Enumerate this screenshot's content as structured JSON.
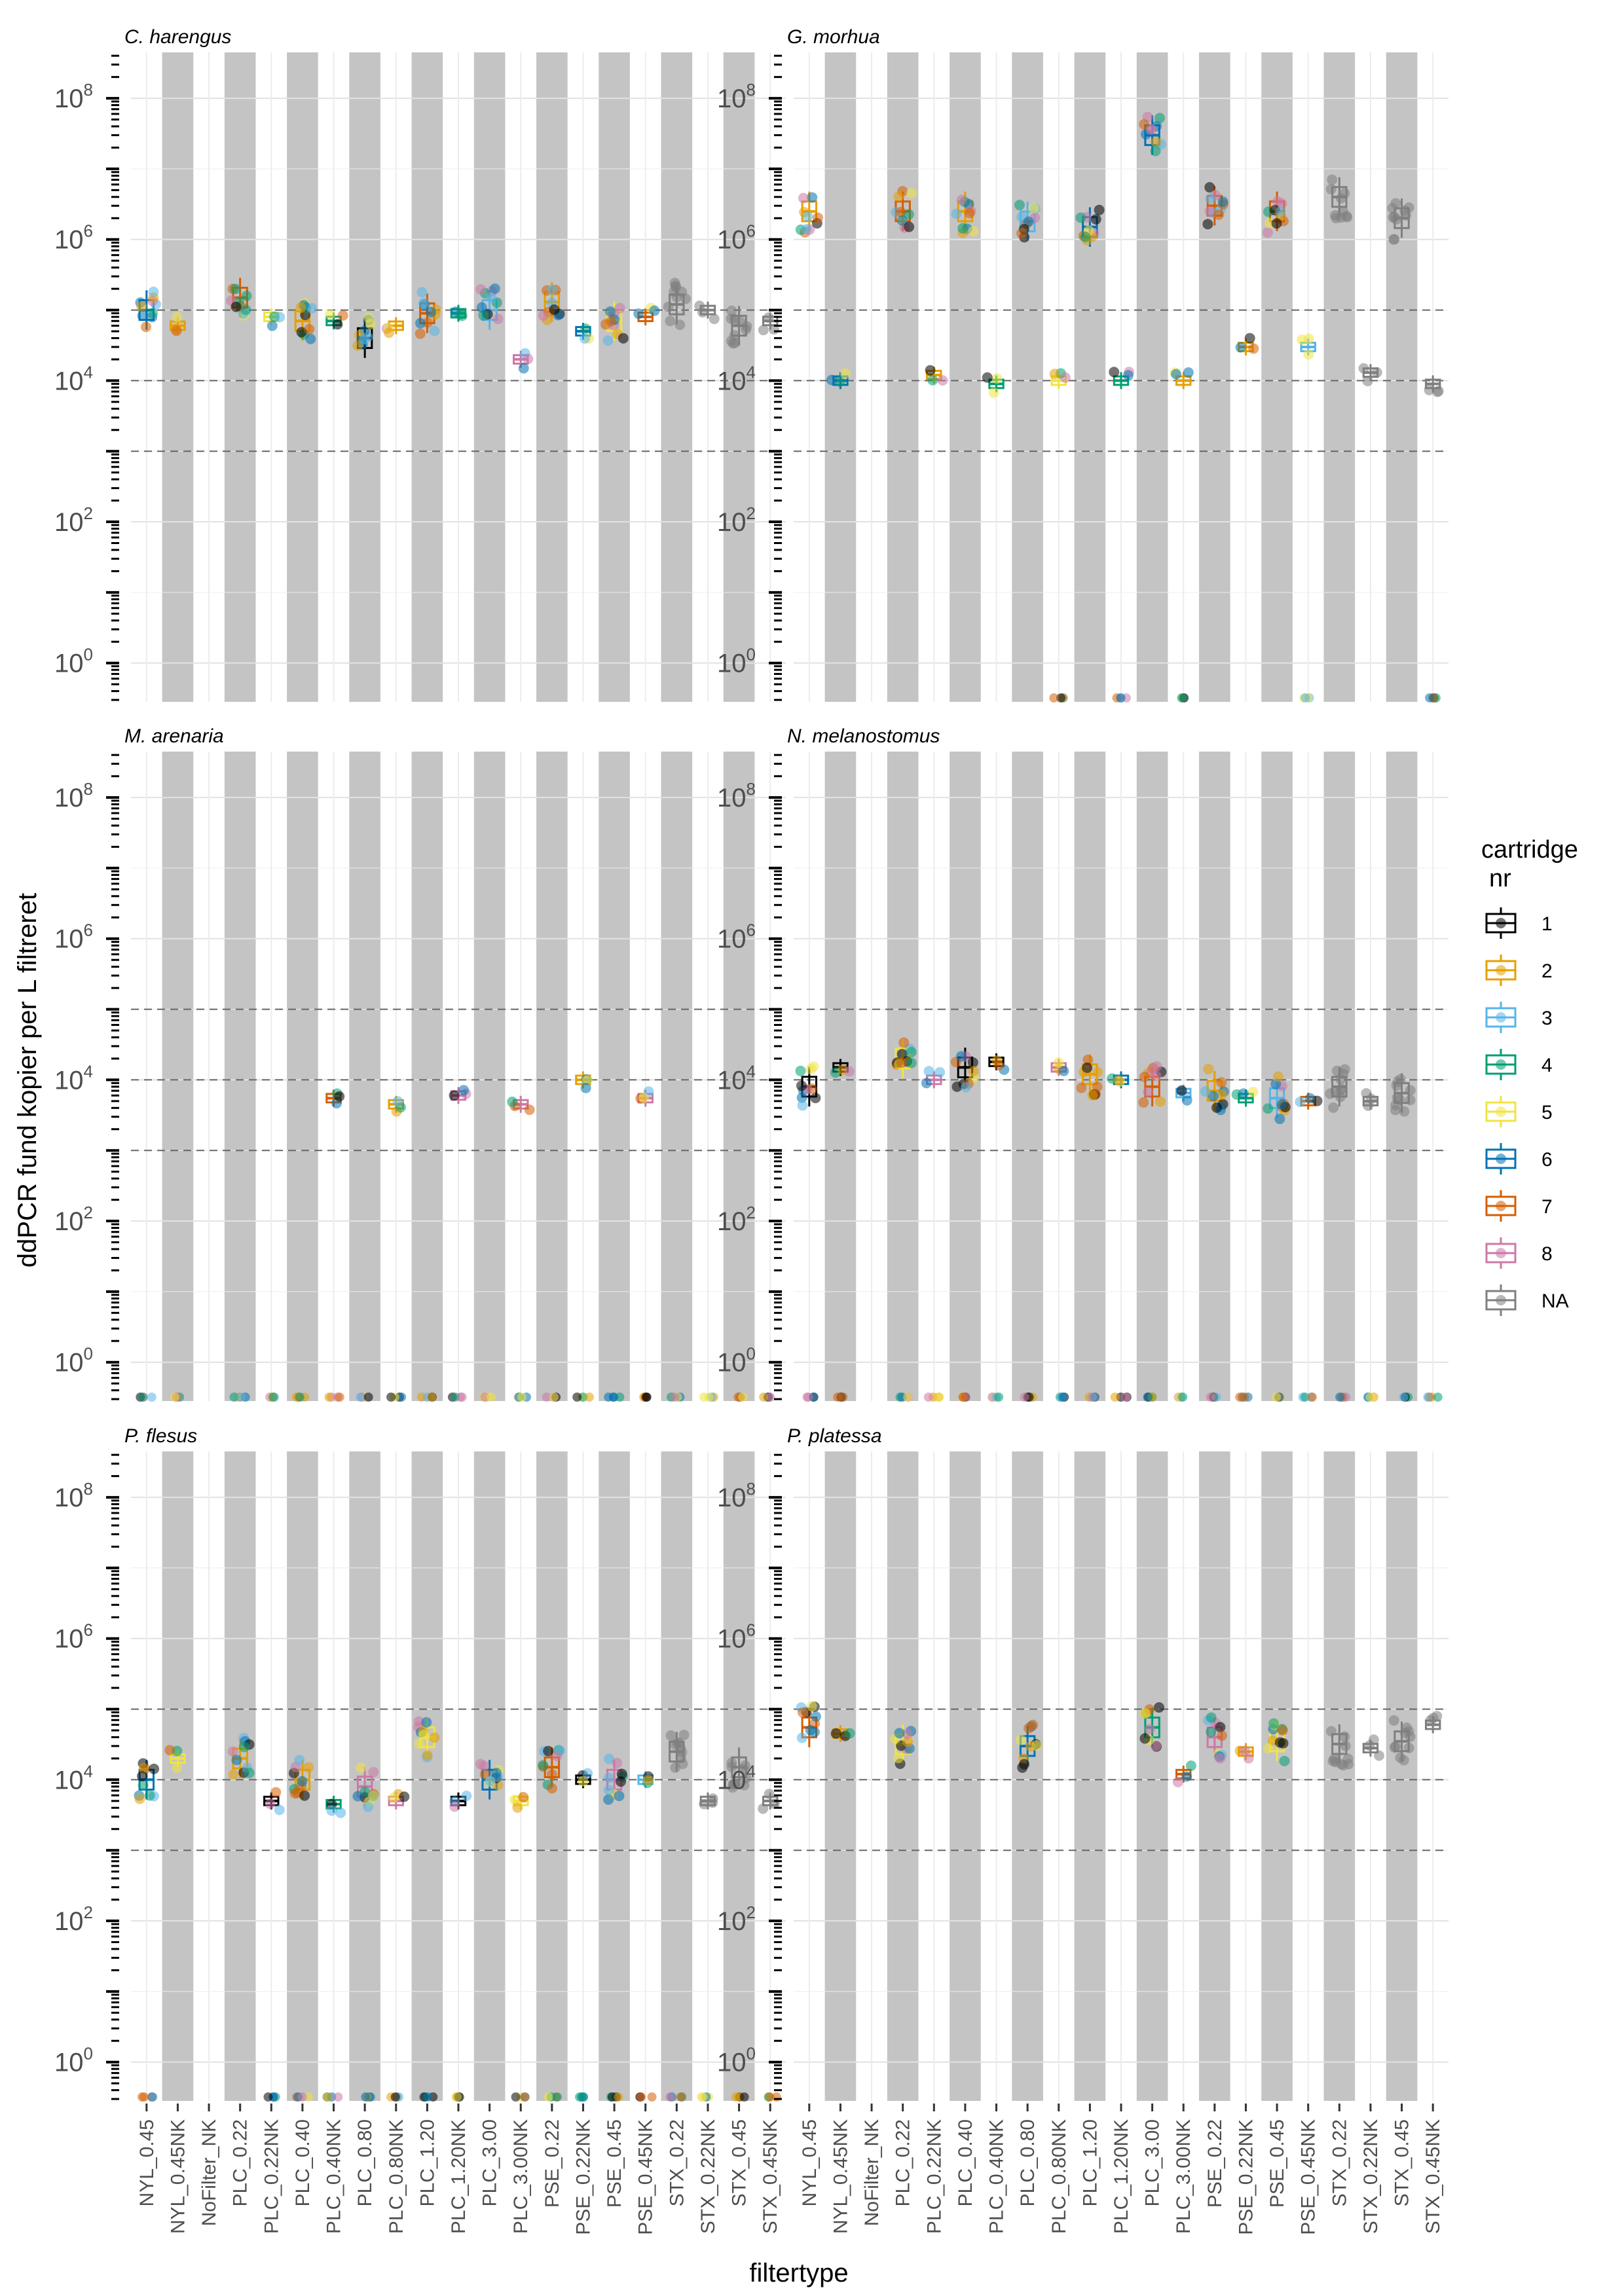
{
  "chart_data": {
    "type": "boxplot-jitter",
    "scale": "log10",
    "xlabel": "filtertype",
    "ylabel": "ddPCR fund kopier per L filtreret",
    "y_ticks": [
      1,
      100,
      10000,
      1000000,
      100000000
    ],
    "y_tick_labels": [
      {
        "base": "10",
        "exp": "0"
      },
      {
        "base": "10",
        "exp": "2"
      },
      {
        "base": "10",
        "exp": "4"
      },
      {
        "base": "10",
        "exp": "6"
      },
      {
        "base": "10",
        "exp": "8"
      }
    ],
    "reference_lines": [
      1000,
      10000,
      100000
    ],
    "categories": [
      "NYL_0.45",
      "NYL_0.45NK",
      "NoFilter_NK",
      "PLC_0.22",
      "PLC_0.22NK",
      "PLC_0.40",
      "PLC_0.40NK",
      "PLC_0.80",
      "PLC_0.80NK",
      "PLC_1.20",
      "PLC_1.20NK",
      "PLC_3.00",
      "PLC_3.00NK",
      "PSE_0.22",
      "PSE_0.22NK",
      "PSE_0.45",
      "PSE_0.45NK",
      "STX_0.22",
      "STX_0.22NK",
      "STX_0.45",
      "STX_0.45NK"
    ],
    "legend": {
      "title_line1": "cartridge",
      "title_line2": "nr",
      "entries": [
        {
          "label": "1",
          "color": "#000000"
        },
        {
          "label": "2",
          "color": "#E69F00"
        },
        {
          "label": "3",
          "color": "#56B4E9"
        },
        {
          "label": "4",
          "color": "#009E73"
        },
        {
          "label": "5",
          "color": "#F0E442"
        },
        {
          "label": "6",
          "color": "#0072B2"
        },
        {
          "label": "7",
          "color": "#D55E00"
        },
        {
          "label": "8",
          "color": "#CC79A7"
        },
        {
          "label": "NA",
          "color": "#7F7F7F"
        }
      ]
    },
    "panels": [
      {
        "title": "C. harengus",
        "medians": [
          100000,
          60000,
          null,
          150000,
          80000,
          70000,
          70000,
          40000,
          60000,
          90000,
          90000,
          100000,
          20000,
          130000,
          50000,
          70000,
          80000,
          120000,
          100000,
          60000,
          70000
        ],
        "zeros": [
          false,
          false,
          false,
          false,
          false,
          false,
          false,
          false,
          false,
          false,
          false,
          false,
          false,
          false,
          false,
          false,
          false,
          false,
          false,
          false,
          false
        ]
      },
      {
        "title": "G. morhua",
        "medians": [
          2500000,
          10000,
          null,
          2500000,
          12000,
          2500000,
          9000,
          1800000,
          10000,
          1500000,
          10000,
          30000000,
          10000,
          3000000,
          30000,
          2500000,
          30000,
          4000000,
          13000,
          2000000,
          9000
        ],
        "zeros": [
          false,
          false,
          false,
          false,
          false,
          false,
          false,
          false,
          true,
          false,
          true,
          false,
          true,
          false,
          false,
          false,
          true,
          false,
          false,
          false,
          true
        ]
      },
      {
        "title": "M. arenaria",
        "medians": [
          null,
          null,
          null,
          null,
          null,
          null,
          5500,
          null,
          4500,
          null,
          6000,
          null,
          4500,
          null,
          10000,
          null,
          5500,
          null,
          null,
          null,
          null
        ],
        "zeros": [
          true,
          true,
          false,
          true,
          true,
          true,
          true,
          true,
          true,
          true,
          true,
          true,
          true,
          true,
          true,
          true,
          true,
          true,
          true,
          true,
          true
        ]
      },
      {
        "title": "N. melanostomus",
        "medians": [
          8000,
          15000,
          null,
          20000,
          10000,
          15000,
          18000,
          null,
          15000,
          12000,
          10000,
          8000,
          6500,
          7000,
          5500,
          5500,
          5000,
          8000,
          5000,
          6500,
          null
        ],
        "zeros": [
          true,
          true,
          false,
          true,
          true,
          true,
          true,
          true,
          true,
          true,
          true,
          true,
          true,
          true,
          true,
          true,
          true,
          true,
          true,
          true,
          true
        ]
      },
      {
        "title": "P. flesus",
        "medians": [
          10000,
          20000,
          null,
          20000,
          5000,
          10000,
          4500,
          8000,
          5000,
          40000,
          5000,
          10000,
          5000,
          15000,
          10000,
          10000,
          10000,
          25000,
          5000,
          15000,
          5000
        ],
        "zeros": [
          true,
          false,
          false,
          false,
          true,
          true,
          true,
          true,
          true,
          true,
          true,
          false,
          true,
          true,
          true,
          true,
          true,
          true,
          true,
          true,
          true
        ]
      },
      {
        "title": "P. platessa",
        "medians": [
          55000,
          45000,
          null,
          32000,
          null,
          null,
          null,
          30000,
          null,
          null,
          null,
          55000,
          12000,
          40000,
          25000,
          35000,
          null,
          32000,
          28000,
          35000,
          60000
        ],
        "zeros": [
          false,
          false,
          false,
          false,
          false,
          false,
          false,
          false,
          false,
          false,
          false,
          false,
          false,
          false,
          false,
          false,
          false,
          false,
          false,
          false,
          false
        ]
      }
    ]
  }
}
